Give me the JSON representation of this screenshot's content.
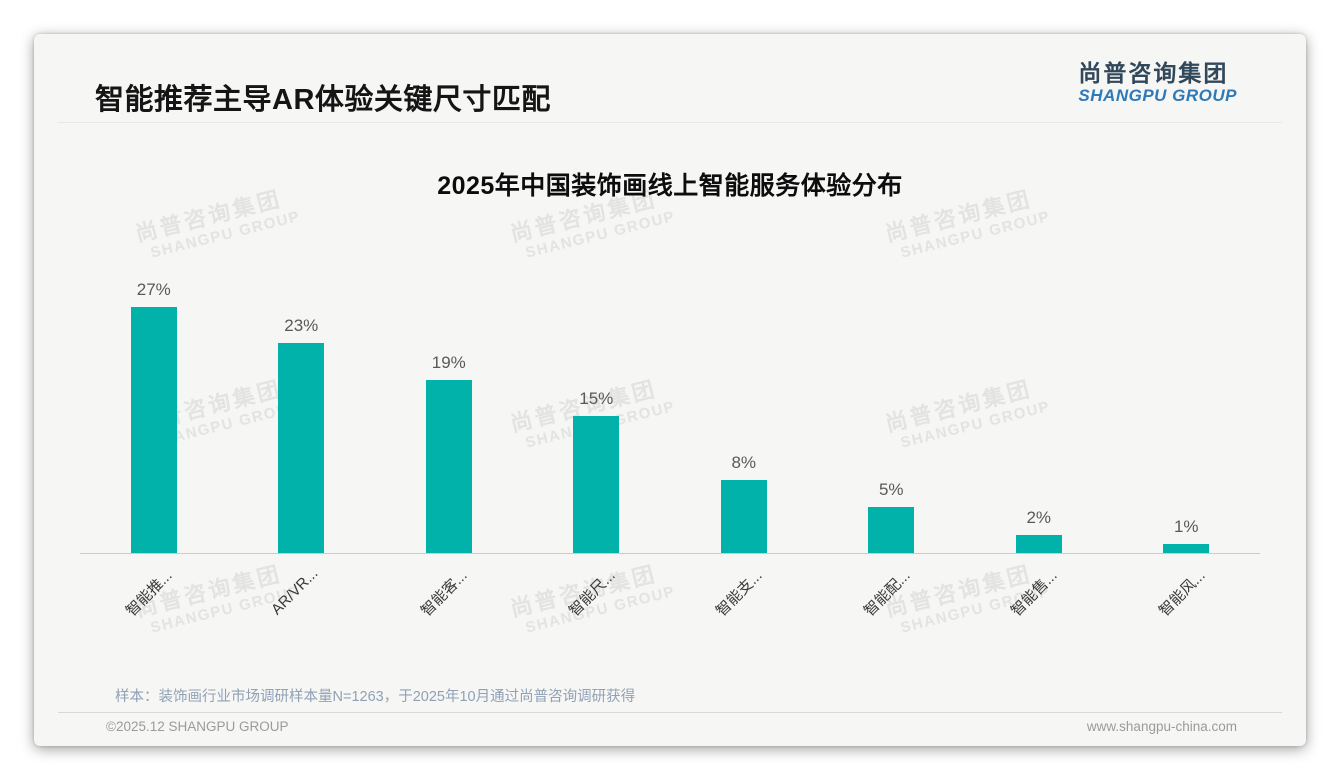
{
  "page": {
    "title": "智能推荐主导AR体验关键尺寸匹配",
    "logo": {
      "cn": "尚普咨询集团",
      "en": "SHANGPU GROUP"
    },
    "watermark": {
      "cn": "尚普咨询集团",
      "en": "SHANGPU GROUP"
    },
    "sample_note": "样本：装饰画行业市场调研样本量N=1263，于2025年10月通过尚普咨询调研获得",
    "footer_left": "©2025.12 SHANGPU GROUP",
    "footer_right": "www.shangpu-china.com"
  },
  "chart_data": {
    "type": "bar",
    "title": "2025年中国装饰画线上智能服务体验分布",
    "categories": [
      "智能推...",
      "AR/VR...",
      "智能客...",
      "智能尺...",
      "智能支...",
      "智能配...",
      "智能售...",
      "智能风..."
    ],
    "values": [
      27,
      23,
      19,
      15,
      8,
      5,
      2,
      1
    ],
    "unit": "%",
    "ylim": [
      0,
      30
    ],
    "grid": false,
    "legend": false,
    "xlabel": "",
    "ylabel": "",
    "x_label_rotation_deg": 45,
    "bar_color": "#00b2aa",
    "value_label_color": "#595959",
    "axis_color": "#cbcbcb"
  },
  "colors": {
    "card_bg": "#f6f6f5",
    "page_bg": "#ffffff",
    "title_text": "#151515",
    "logo_cn": "#31475a",
    "logo_en": "#2e79b8",
    "watermark": "#e3e3e2",
    "note_text": "#90a1b5",
    "footer_text": "#9b9b9b"
  }
}
